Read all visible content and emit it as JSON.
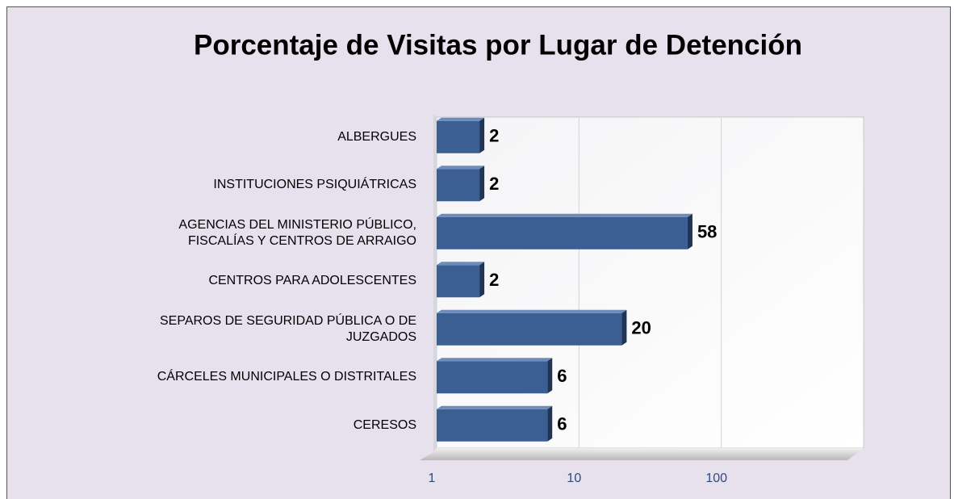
{
  "chart_data": {
    "type": "bar",
    "orientation": "horizontal",
    "title": "Porcentaje de Visitas por Lugar de Detención",
    "categories": [
      "ALBERGUES",
      "INSTITUCIONES PSIQUIÁTRICAS",
      "AGENCIAS DEL MINISTERIO PÚBLICO,\nFISCALÍAS Y CENTROS DE ARRAIGO",
      "CENTROS PARA ADOLESCENTES",
      "SEPAROS DE SEGURIDAD PÚBLICA O DE\nJUZGADOS",
      "CÁRCELES MUNICIPALES O DISTRITALES",
      "CERESOS"
    ],
    "values": [
      2,
      2,
      58,
      2,
      20,
      6,
      6
    ],
    "color": "#3b5e93",
    "xlim": [
      1,
      1000
    ],
    "xticks": [
      1,
      10,
      100
    ],
    "log_x": true,
    "grid": true
  }
}
